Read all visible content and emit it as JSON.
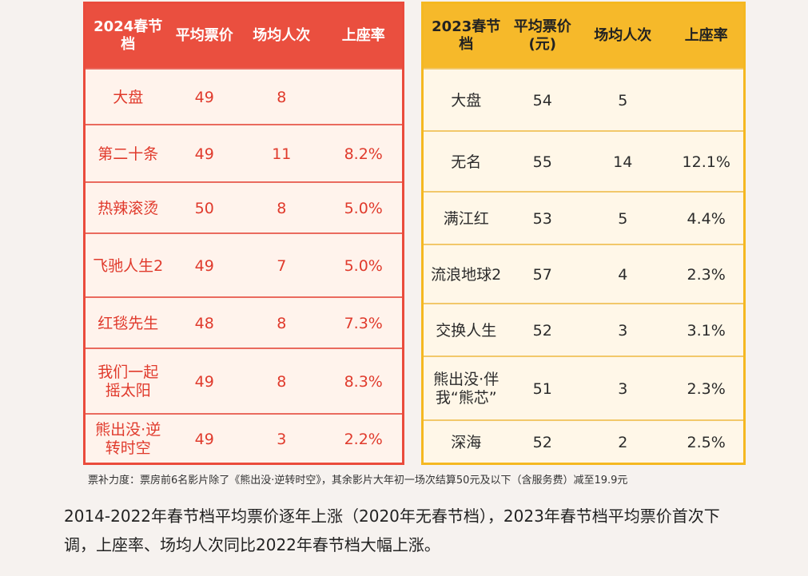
{
  "table_2024": {
    "headers": [
      "2024春节\n档",
      "平均票价",
      "场均人次",
      "上座率"
    ],
    "rows": [
      [
        "大盘",
        "49",
        "8",
        ""
      ],
      [
        "第二十条",
        "49",
        "11",
        "8.2%"
      ],
      [
        "热辣滚烫",
        "50",
        "8",
        "5.0%"
      ],
      [
        "飞驰人生2",
        "49",
        "7",
        "5.0%"
      ],
      [
        "红毯先生",
        "48",
        "8",
        "7.3%"
      ],
      [
        "我们一起\n摇太阳",
        "49",
        "8",
        "8.3%"
      ],
      [
        "熊出没·逆\n转时空",
        "49",
        "3",
        "2.2%"
      ]
    ]
  },
  "table_2023": {
    "headers": [
      "2023春节\n档",
      "平均票价\n(元)",
      "场均人次",
      "上座率"
    ],
    "rows": [
      [
        "大盘",
        "54",
        "5",
        ""
      ],
      [
        "无名",
        "55",
        "14",
        "12.1%"
      ],
      [
        "满江红",
        "53",
        "5",
        "4.4%"
      ],
      [
        "流浪地球2",
        "57",
        "4",
        "2.3%"
      ],
      [
        "交换人生",
        "52",
        "3",
        "3.1%"
      ],
      [
        "熊出没·伴\n我“熊芯”",
        "51",
        "3",
        "2.3%"
      ],
      [
        "深海",
        "52",
        "2",
        "2.5%"
      ]
    ]
  },
  "note": "票补力度：票房前6名影片除了《熊出没·逆转时空》，其余影片大年初一场次结算50元及以下（含服务费）减至19.9元",
  "paragraph": "2014-2022年春节档平均票价逐年上涨（2020年无春节档），2023年春节档平均票价首次下调，上座率、场均人次同比2022年春节档大幅上涨。"
}
